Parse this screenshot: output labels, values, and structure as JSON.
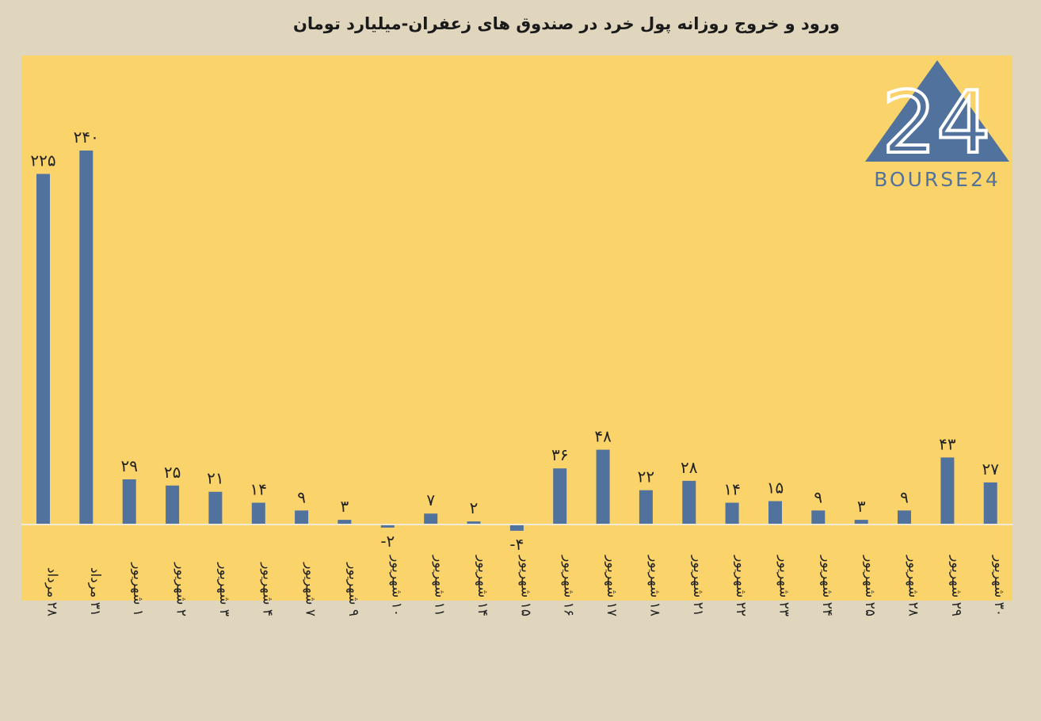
{
  "chart_data": {
    "type": "bar",
    "title": "ورود و خروج روزانه پول خرد در صندوق های زعفران-میلیارد تومان",
    "categories": [
      "۲۸ مرداد",
      "۳۱ مرداد",
      "۱ شهریور",
      "۲ شهریور",
      "۳ شهریور",
      "۴ شهریور",
      "۷ شهریور",
      "۹ شهریور",
      "۱۰ شهریور",
      "۱۱ شهریور",
      "۱۴ شهریور",
      "۱۵ شهریور",
      "۱۶ شهریور",
      "۱۷ شهریور",
      "۱۸ شهریور",
      "۲۱ شهریور",
      "۲۲ شهریور",
      "۲۳ شهریور",
      "۲۴ شهریور",
      "۲۵ شهریور",
      "۲۸ شهریور",
      "۲۹ شهریور",
      "۳۰ شهریور"
    ],
    "values": [
      225,
      240,
      29,
      25,
      21,
      14,
      9,
      3,
      -2,
      7,
      2,
      -4,
      36,
      48,
      22,
      28,
      14,
      15,
      9,
      3,
      9,
      43,
      27
    ],
    "value_labels": [
      "۲۲۵",
      "۲۴۰",
      "۲۹",
      "۲۵",
      "۲۱",
      "۱۴",
      "۹",
      "۳",
      "-۲",
      "۷",
      "۲",
      "-۴",
      "۳۶",
      "۴۸",
      "۲۲",
      "۲۸",
      "۱۴",
      "۱۵",
      "۹",
      "۳",
      "۹",
      "۴۳",
      "۲۷"
    ],
    "ylim": [
      -50,
      300
    ],
    "grid": false,
    "legend": "none",
    "colors": {
      "bar": "#51729c",
      "plot_bg": "#fad36b",
      "page_bg": "#e0d6bd"
    }
  },
  "logo": {
    "text": "BOURSE24",
    "mark": "24"
  }
}
